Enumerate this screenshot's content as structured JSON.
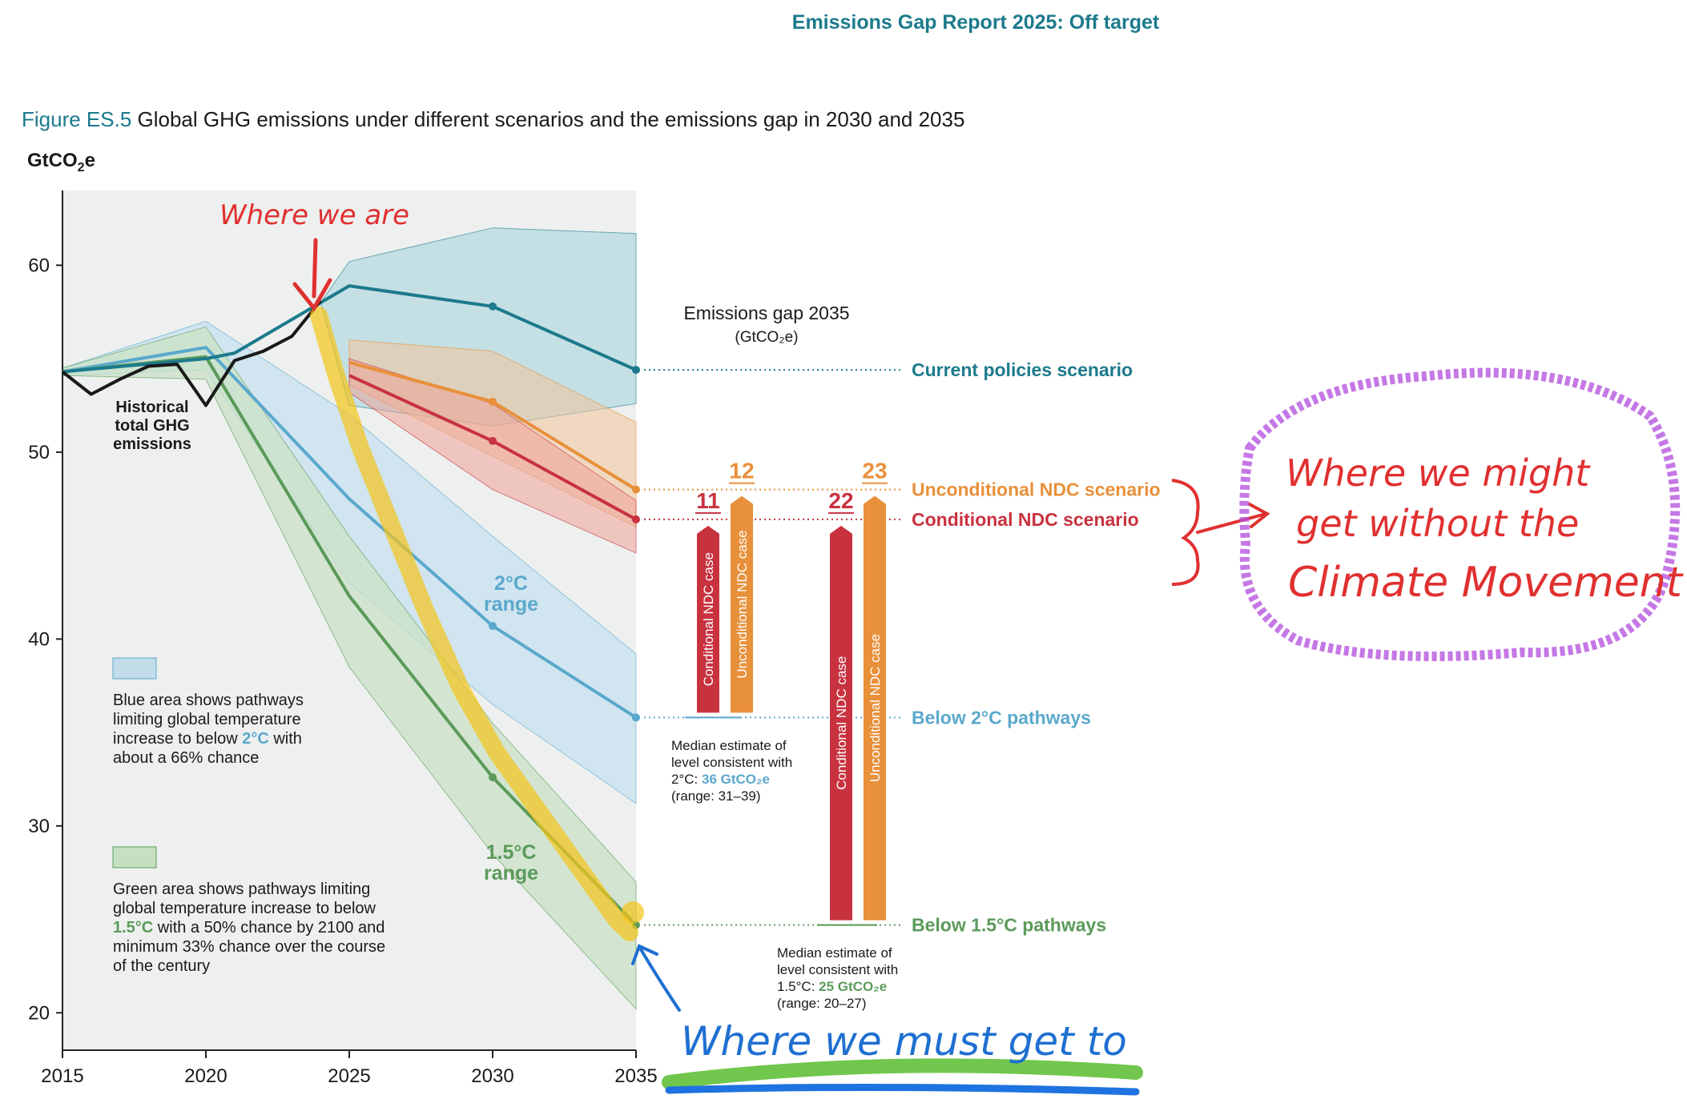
{
  "header": {
    "report_title": "Emissions Gap Report 2025: Off target"
  },
  "figure": {
    "label": "Figure ES.5",
    "title": "Global GHG emissions under different scenarios and the emissions gap in 2030 and 2035"
  },
  "colors": {
    "teal": "#1c7a8c",
    "orange": "#e8903a",
    "red": "#c8323f",
    "blue": "#5aa8cc",
    "green": "#5b9a5a",
    "black": "#1a1a1a",
    "plot_bg": "#eef0ef"
  },
  "chart_data": {
    "type": "line",
    "ylabel": "GtCO₂e",
    "ylabel_sub": "2",
    "ylim": [
      18,
      64
    ],
    "xlim": [
      2015,
      2035
    ],
    "x_ticks": [
      "2015",
      "2020",
      "2025",
      "2030",
      "2035"
    ],
    "y_ticks": [
      "20",
      "30",
      "40",
      "50",
      "60"
    ],
    "series": [
      {
        "key": "historical",
        "name": "Historical total GHG emissions",
        "x": [
          2015,
          2016,
          2017,
          2018,
          2019,
          2020,
          2021,
          2022,
          2023,
          2024
        ],
        "y": [
          54.3,
          53.1,
          53.9,
          54.6,
          54.7,
          52.5,
          54.9,
          55.4,
          56.2,
          58.1
        ]
      },
      {
        "key": "current",
        "name": "Current policies scenario",
        "x": [
          2015,
          2020,
          2021,
          2024,
          2025,
          2030,
          2035
        ],
        "y": [
          54.3,
          55.0,
          55.3,
          58.0,
          58.9,
          57.8,
          54.4
        ],
        "band": {
          "x": [
            2024,
            2025,
            2030,
            2035
          ],
          "low": [
            58.0,
            52.5,
            51.4,
            52.6
          ],
          "high": [
            58.0,
            60.2,
            62.0,
            61.7
          ]
        }
      },
      {
        "key": "unconditional",
        "name": "Unconditional NDC scenario",
        "x": [
          2025,
          2030,
          2035
        ],
        "y": [
          54.8,
          52.7,
          48.0
        ],
        "band": {
          "x": [
            2025,
            2030,
            2035
          ],
          "low": [
            53.6,
            49.8,
            46.0
          ],
          "high": [
            56.0,
            55.4,
            51.6
          ]
        }
      },
      {
        "key": "conditional",
        "name": "Conditional NDC scenario",
        "x": [
          2025,
          2030,
          2035
        ],
        "y": [
          54.1,
          50.6,
          46.4
        ],
        "band": {
          "x": [
            2025,
            2030,
            2035
          ],
          "low": [
            53.2,
            48.0,
            44.6
          ],
          "high": [
            55.0,
            52.6,
            47.4
          ]
        }
      },
      {
        "key": "two_c",
        "name": "Below 2°C pathways",
        "x": [
          2015,
          2020,
          2025,
          2030,
          2035
        ],
        "y": [
          54.3,
          55.6,
          47.5,
          40.7,
          35.8
        ],
        "band": {
          "x": [
            2015,
            2020,
            2025,
            2030,
            2035
          ],
          "low": [
            54.1,
            54.4,
            43.0,
            36.5,
            31.2
          ],
          "high": [
            54.5,
            57.0,
            52.0,
            45.5,
            39.2
          ]
        }
      },
      {
        "key": "one_five_c",
        "name": "Below 1.5°C pathways",
        "x": [
          2015,
          2020,
          2025,
          2030,
          2035
        ],
        "y": [
          54.3,
          55.1,
          42.3,
          32.6,
          24.7
        ],
        "band": {
          "x": [
            2015,
            2020,
            2025,
            2030,
            2035
          ],
          "low": [
            54.1,
            53.9,
            38.5,
            28.5,
            20.2
          ],
          "high": [
            54.5,
            56.7,
            45.5,
            35.5,
            27.0
          ]
        }
      }
    ],
    "gap": {
      "title": "Emissions gap 2035",
      "unit": "(GtCO₂e)",
      "bars": [
        {
          "label": "Conditional NDC case",
          "value": "11",
          "from": 35.8,
          "to": 46.4,
          "color": "red"
        },
        {
          "label": "Unconditional NDC case",
          "value": "12",
          "from": 35.8,
          "to": 48.0,
          "color": "orange"
        },
        {
          "label": "Conditional NDC case",
          "value": "22",
          "from": 24.7,
          "to": 46.4,
          "color": "red"
        },
        {
          "label": "Unconditional NDC case",
          "value": "23",
          "from": 24.7,
          "to": 48.0,
          "color": "orange"
        }
      ]
    },
    "annotations": {
      "historical": [
        "Historical",
        "total GHG",
        "emissions"
      ],
      "two_c_range": [
        "2°C",
        "range"
      ],
      "one_five_range": [
        "1.5°C",
        "range"
      ],
      "blue_legend": [
        "Blue area shows pathways",
        "limiting global temperature",
        "increase to below ",
        "2°C",
        " with",
        "about a 66% chance"
      ],
      "green_legend": [
        "Green area shows pathways limiting",
        "global temperature increase to below",
        "1.5°C",
        " with a 50% chance by 2100 and",
        "minimum 33% chance over the course",
        "of the century"
      ],
      "median_2c": [
        "Median estimate of",
        "level consistent with",
        "2°C: ",
        "36 GtCO₂e",
        "(range: 31–39)"
      ],
      "median_15c": [
        "Median estimate of",
        "level consistent with",
        "1.5°C: ",
        "25 GtCO₂e",
        "(range: 20–27)"
      ]
    }
  },
  "handwritten": {
    "where_we_are": "Where we are",
    "where_we_might": [
      "Where we might",
      "get without the",
      "Climate Movement"
    ],
    "where_we_must": "Where we must get to"
  }
}
